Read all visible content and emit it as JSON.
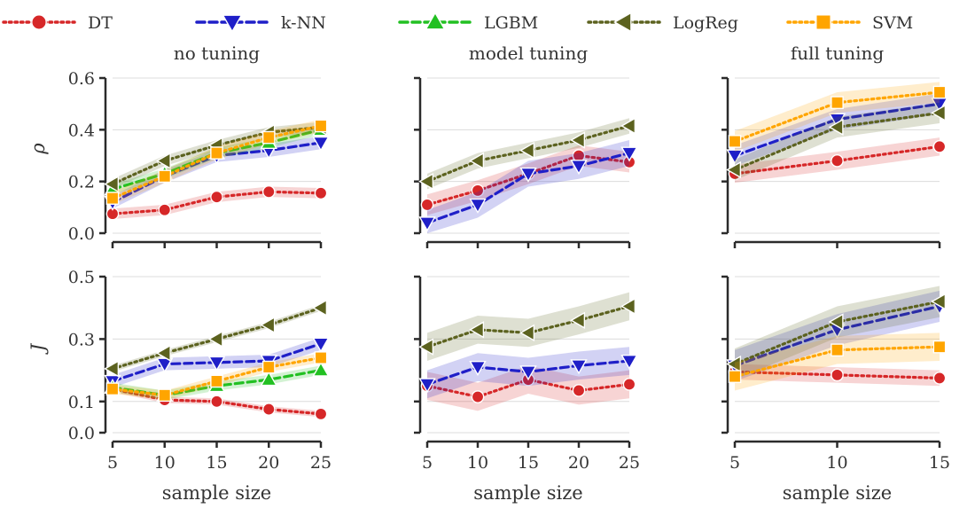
{
  "legend": [
    {
      "name": "DT",
      "color": "#d62728",
      "marker": "circle",
      "dash": "dotted"
    },
    {
      "name": "k-NN",
      "color": "#1f1fc8",
      "marker": "triangle-down",
      "dash": "dashed"
    },
    {
      "name": "LGBM",
      "color": "#22c022",
      "marker": "triangle-up",
      "dash": "dashed"
    },
    {
      "name": "LogReg",
      "color": "#5c621f",
      "marker": "triangle-left",
      "dash": "dotted"
    },
    {
      "name": "SVM",
      "color": "#ffa500",
      "marker": "square",
      "dash": "dotted"
    }
  ],
  "chart_data": [
    {
      "type": "line",
      "title": "no tuning",
      "xlabel": "",
      "ylabel": "ρ",
      "x": [
        5,
        10,
        15,
        20,
        25
      ],
      "xticks": [
        "5",
        "10",
        "15",
        "20",
        "25"
      ],
      "ylim": [
        0,
        0.6
      ],
      "yticks": [
        "0.0",
        "0.2",
        "0.4",
        "0.6"
      ],
      "grid": "horizontal",
      "series": [
        {
          "name": "DT",
          "values": [
            0.075,
            0.09,
            0.14,
            0.16,
            0.155
          ],
          "band": 0.02
        },
        {
          "name": "k-NN",
          "values": [
            0.12,
            0.22,
            0.3,
            0.32,
            0.35
          ],
          "band": 0.025
        },
        {
          "name": "LGBM",
          "values": [
            0.17,
            0.23,
            0.31,
            0.35,
            0.4
          ],
          "band": 0.02
        },
        {
          "name": "LogReg",
          "values": [
            0.19,
            0.28,
            0.34,
            0.39,
            0.41
          ],
          "band": 0.02
        },
        {
          "name": "SVM",
          "values": [
            0.135,
            0.22,
            0.31,
            0.37,
            0.415
          ],
          "band": 0.025
        }
      ]
    },
    {
      "type": "line",
      "title": "model tuning",
      "xlabel": "",
      "ylabel": "",
      "x": [
        5,
        10,
        15,
        20,
        25
      ],
      "xticks": [
        "5",
        "10",
        "15",
        "20",
        "25"
      ],
      "ylim": [
        0,
        0.6
      ],
      "yticks": [
        "",
        "",
        "",
        ""
      ],
      "grid": "horizontal",
      "series": [
        {
          "name": "DT",
          "values": [
            0.11,
            0.165,
            0.23,
            0.3,
            0.275
          ],
          "band": 0.04
        },
        {
          "name": "k-NN",
          "values": [
            0.04,
            0.11,
            0.23,
            0.26,
            0.31
          ],
          "band": 0.05
        },
        {
          "name": "LogReg",
          "values": [
            0.2,
            0.28,
            0.32,
            0.36,
            0.415
          ],
          "band": 0.03
        }
      ]
    },
    {
      "type": "line",
      "title": "full tuning",
      "xlabel": "",
      "ylabel": "",
      "x": [
        5,
        10,
        15
      ],
      "xticks": [
        "5",
        "10",
        "15"
      ],
      "ylim": [
        0,
        0.6
      ],
      "yticks": [
        "",
        "",
        "",
        ""
      ],
      "grid": "horizontal",
      "series": [
        {
          "name": "DT",
          "values": [
            0.23,
            0.28,
            0.335
          ],
          "band": 0.035
        },
        {
          "name": "k-NN",
          "values": [
            0.3,
            0.44,
            0.5
          ],
          "band": 0.04
        },
        {
          "name": "LogReg",
          "values": [
            0.245,
            0.41,
            0.465
          ],
          "band": 0.04
        },
        {
          "name": "SVM",
          "values": [
            0.355,
            0.505,
            0.545
          ],
          "band": 0.04
        }
      ]
    },
    {
      "type": "line",
      "title": "",
      "xlabel": "sample size",
      "ylabel": "J",
      "x": [
        5,
        10,
        15,
        20,
        25
      ],
      "xticks": [
        "5",
        "10",
        "15",
        "20",
        "25"
      ],
      "ylim": [
        0,
        0.5
      ],
      "yticks": [
        "0.0",
        "0.1",
        "0.3",
        "0.5"
      ],
      "yticks_at": [
        0,
        0.1,
        0.3,
        0.5
      ],
      "grid": "horizontal",
      "series": [
        {
          "name": "DT",
          "values": [
            0.14,
            0.105,
            0.1,
            0.075,
            0.06
          ],
          "band": 0.01
        },
        {
          "name": "k-NN",
          "values": [
            0.165,
            0.22,
            0.225,
            0.23,
            0.285
          ],
          "band": 0.02
        },
        {
          "name": "LGBM",
          "values": [
            0.145,
            0.12,
            0.15,
            0.17,
            0.2
          ],
          "band": 0.015
        },
        {
          "name": "LogReg",
          "values": [
            0.205,
            0.255,
            0.3,
            0.345,
            0.4
          ],
          "band": 0.01
        },
        {
          "name": "SVM",
          "values": [
            0.14,
            0.12,
            0.165,
            0.21,
            0.24
          ],
          "band": 0.015
        }
      ]
    },
    {
      "type": "line",
      "title": "",
      "xlabel": "sample size",
      "ylabel": "",
      "x": [
        5,
        10,
        15,
        20,
        25
      ],
      "xticks": [
        "5",
        "10",
        "15",
        "20",
        "25"
      ],
      "ylim": [
        0,
        0.5
      ],
      "yticks": [
        "",
        "",
        "",
        ""
      ],
      "yticks_at": [
        0,
        0.1,
        0.3,
        0.5
      ],
      "grid": "horizontal",
      "series": [
        {
          "name": "DT",
          "values": [
            0.15,
            0.115,
            0.17,
            0.135,
            0.155
          ],
          "band": 0.045
        },
        {
          "name": "k-NN",
          "values": [
            0.155,
            0.21,
            0.195,
            0.215,
            0.23
          ],
          "band": 0.045
        },
        {
          "name": "LogReg",
          "values": [
            0.275,
            0.33,
            0.32,
            0.36,
            0.405
          ],
          "band": 0.045
        }
      ]
    },
    {
      "type": "line",
      "title": "",
      "xlabel": "sample size",
      "ylabel": "",
      "x": [
        5,
        10,
        15
      ],
      "xticks": [
        "5",
        "10",
        "15"
      ],
      "ylim": [
        0,
        0.5
      ],
      "yticks": [
        "",
        "",
        "",
        ""
      ],
      "yticks_at": [
        0,
        0.1,
        0.3,
        0.5
      ],
      "grid": "horizontal",
      "series": [
        {
          "name": "DT",
          "values": [
            0.195,
            0.185,
            0.175
          ],
          "band": 0.025
        },
        {
          "name": "k-NN",
          "values": [
            0.215,
            0.33,
            0.405
          ],
          "band": 0.05
        },
        {
          "name": "LogReg",
          "values": [
            0.22,
            0.355,
            0.42
          ],
          "band": 0.05
        },
        {
          "name": "SVM",
          "values": [
            0.18,
            0.265,
            0.275
          ],
          "band": 0.045
        }
      ]
    }
  ]
}
